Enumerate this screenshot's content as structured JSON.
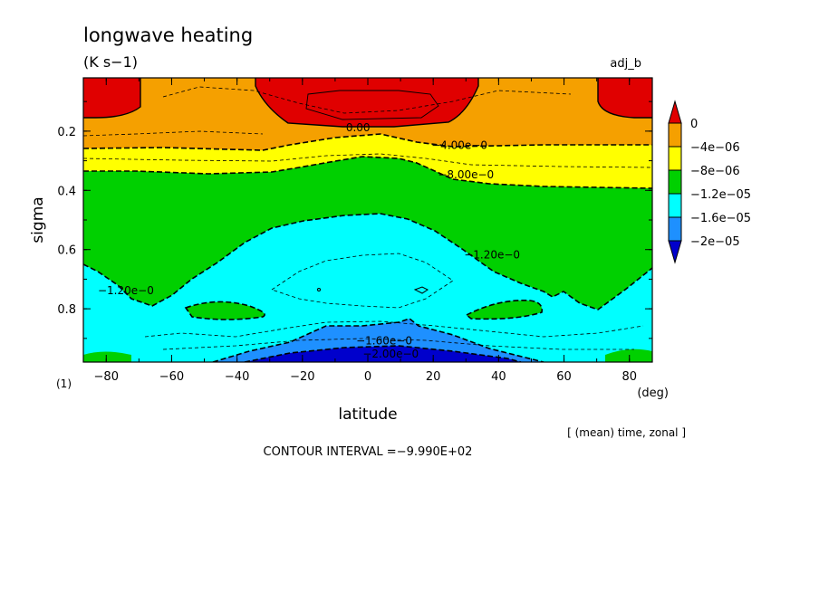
{
  "chart_data": {
    "type": "heatmap",
    "title": "longwave heating",
    "units": "(K s−1)",
    "experiment": "adj_b",
    "xlabel": "latitude",
    "xunit": "(deg)",
    "ylabel": "sigma",
    "xlim": [
      -87,
      87
    ],
    "ylim": [
      0.98,
      0.02
    ],
    "x_ticks": [
      {
        "value": -80,
        "label": "−80"
      },
      {
        "value": -60,
        "label": "−60"
      },
      {
        "value": -40,
        "label": "−40"
      },
      {
        "value": -20,
        "label": "−20"
      },
      {
        "value": 0,
        "label": "0"
      },
      {
        "value": 20,
        "label": "20"
      },
      {
        "value": 40,
        "label": "40"
      },
      {
        "value": 60,
        "label": "60"
      },
      {
        "value": 80,
        "label": "80"
      }
    ],
    "y_ticks": [
      {
        "value": 0.2,
        "label": "0.2"
      },
      {
        "value": 0.4,
        "label": "0.4"
      },
      {
        "value": 0.6,
        "label": "0.6"
      },
      {
        "value": 0.8,
        "label": "0.8"
      }
    ],
    "colorbar": {
      "levels": [
        {
          "value": 0,
          "label": "0"
        },
        {
          "value": -4e-06,
          "label": "−4e−06"
        },
        {
          "value": -8e-06,
          "label": "−8e−06"
        },
        {
          "value": -1.2e-05,
          "label": "−1.2e−05"
        },
        {
          "value": -1.6e-05,
          "label": "−1.6e−05"
        },
        {
          "value": -2e-05,
          "label": "−2e−05"
        }
      ],
      "colors": [
        "#e00000",
        "#f5a000",
        "#ffff00",
        "#00d000",
        "#00ffff",
        "#1e90ff",
        "#0000cc"
      ]
    },
    "contour_labels": [
      {
        "text": "0.00",
        "lat": -3,
        "sigma": 0.2
      },
      {
        "text": "−4.00e−0",
        "lat": 28,
        "sigma": 0.26
      },
      {
        "text": "−8.00e−0",
        "lat": 30,
        "sigma": 0.36
      },
      {
        "text": "−1.20e−0",
        "lat": 38,
        "sigma": 0.63
      },
      {
        "text": "−1.20e−0",
        "lat": -74,
        "sigma": 0.75
      },
      {
        "text": "−1.60e−0",
        "lat": 5,
        "sigma": 0.92
      },
      {
        "text": "−2.00e−0",
        "lat": 7,
        "sigma": 0.965
      }
    ],
    "panel_label": "(1)",
    "averaging_note": "[ (mean) time, zonal ]",
    "contour_interval": "CONTOUR INTERVAL =−9.990E+02"
  }
}
